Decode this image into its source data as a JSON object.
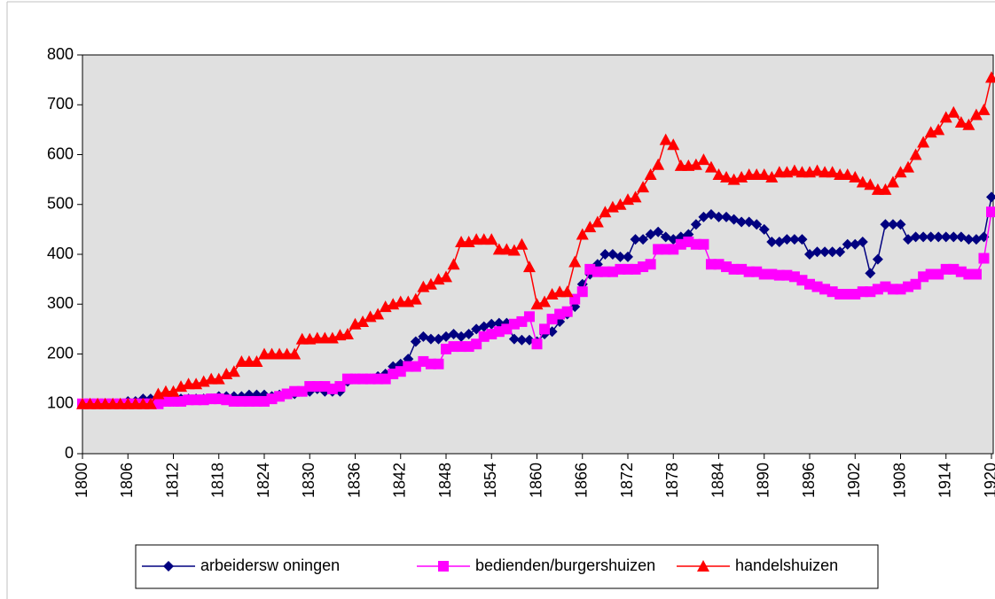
{
  "chart_data": {
    "type": "line",
    "x": [
      1800,
      1801,
      1802,
      1803,
      1804,
      1805,
      1806,
      1807,
      1808,
      1809,
      1810,
      1811,
      1812,
      1813,
      1814,
      1815,
      1816,
      1817,
      1818,
      1819,
      1820,
      1821,
      1822,
      1823,
      1824,
      1825,
      1826,
      1827,
      1828,
      1829,
      1830,
      1831,
      1832,
      1833,
      1834,
      1835,
      1836,
      1837,
      1838,
      1839,
      1840,
      1841,
      1842,
      1843,
      1844,
      1845,
      1846,
      1847,
      1848,
      1849,
      1850,
      1851,
      1852,
      1853,
      1854,
      1855,
      1856,
      1857,
      1858,
      1859,
      1860,
      1861,
      1862,
      1863,
      1864,
      1865,
      1866,
      1867,
      1868,
      1869,
      1870,
      1871,
      1872,
      1873,
      1874,
      1875,
      1876,
      1877,
      1878,
      1879,
      1880,
      1881,
      1882,
      1883,
      1884,
      1885,
      1886,
      1887,
      1888,
      1889,
      1890,
      1891,
      1892,
      1893,
      1894,
      1895,
      1896,
      1897,
      1898,
      1899,
      1900,
      1901,
      1902,
      1903,
      1904,
      1905,
      1906,
      1907,
      1908,
      1909,
      1910,
      1911,
      1912,
      1913,
      1914,
      1915,
      1916,
      1917,
      1918,
      1919,
      1920
    ],
    "xlim": [
      1800,
      1920
    ],
    "xticks": [
      1800,
      1806,
      1812,
      1818,
      1824,
      1830,
      1836,
      1842,
      1848,
      1854,
      1860,
      1866,
      1872,
      1878,
      1884,
      1890,
      1896,
      1902,
      1908,
      1914,
      1920
    ],
    "ylim": [
      0,
      800
    ],
    "yticks": [
      0,
      100,
      200,
      300,
      400,
      500,
      600,
      700,
      800
    ],
    "legend": "bottom",
    "series": [
      {
        "name": "arbeidersw oningen",
        "color": "#000080",
        "marker": "diamond",
        "values": [
          100,
          100,
          100,
          100,
          100,
          100,
          105,
          105,
          110,
          110,
          105,
          105,
          105,
          110,
          110,
          110,
          110,
          110,
          115,
          115,
          115,
          115,
          118,
          118,
          118,
          115,
          118,
          120,
          120,
          125,
          125,
          130,
          125,
          125,
          125,
          145,
          150,
          150,
          150,
          155,
          160,
          175,
          180,
          190,
          225,
          235,
          230,
          230,
          235,
          240,
          235,
          240,
          250,
          255,
          260,
          262,
          262,
          230,
          228,
          228,
          225,
          240,
          245,
          265,
          280,
          295,
          340,
          360,
          380,
          400,
          400,
          395,
          395,
          430,
          430,
          440,
          445,
          435,
          430,
          435,
          440,
          460,
          475,
          480,
          475,
          475,
          470,
          465,
          465,
          460,
          450,
          425,
          425,
          430,
          430,
          430,
          400,
          405,
          405,
          405,
          405,
          420,
          420,
          425,
          362,
          390,
          460,
          460,
          460,
          430,
          435,
          435,
          435,
          435,
          435,
          435,
          435,
          430,
          430,
          435,
          515
        ]
      },
      {
        "name": "bedienden/burgershuizen",
        "color": "#ff00ff",
        "marker": "square",
        "values": [
          100,
          100,
          100,
          100,
          100,
          100,
          100,
          100,
          100,
          100,
          100,
          105,
          105,
          105,
          108,
          108,
          108,
          110,
          110,
          108,
          105,
          105,
          105,
          105,
          105,
          110,
          115,
          120,
          125,
          125,
          135,
          135,
          135,
          130,
          135,
          150,
          150,
          150,
          150,
          150,
          150,
          160,
          165,
          175,
          175,
          185,
          180,
          180,
          210,
          215,
          215,
          215,
          220,
          235,
          240,
          245,
          250,
          260,
          265,
          275,
          220,
          250,
          270,
          280,
          285,
          310,
          325,
          370,
          365,
          365,
          365,
          370,
          370,
          370,
          375,
          380,
          410,
          410,
          410,
          420,
          425,
          420,
          420,
          380,
          380,
          375,
          370,
          370,
          365,
          365,
          360,
          360,
          358,
          358,
          355,
          348,
          340,
          335,
          330,
          325,
          320,
          320,
          320,
          325,
          325,
          330,
          335,
          330,
          330,
          335,
          340,
          355,
          360,
          360,
          370,
          370,
          365,
          360,
          360,
          392,
          485
        ]
      },
      {
        "name": "handelshuizen",
        "color": "#ff0000",
        "marker": "triangle",
        "values": [
          100,
          100,
          100,
          100,
          100,
          100,
          100,
          100,
          100,
          100,
          120,
          125,
          125,
          135,
          140,
          140,
          145,
          150,
          150,
          160,
          165,
          185,
          185,
          185,
          200,
          200,
          200,
          200,
          200,
          230,
          230,
          232,
          232,
          232,
          238,
          240,
          260,
          265,
          275,
          280,
          295,
          300,
          305,
          305,
          310,
          335,
          340,
          350,
          355,
          380,
          425,
          425,
          430,
          430,
          430,
          410,
          410,
          408,
          420,
          375,
          300,
          305,
          320,
          325,
          325,
          385,
          440,
          455,
          465,
          485,
          495,
          500,
          510,
          515,
          535,
          560,
          580,
          630,
          620,
          578,
          578,
          580,
          590,
          575,
          560,
          555,
          550,
          555,
          560,
          560,
          560,
          555,
          565,
          565,
          568,
          565,
          565,
          568,
          565,
          565,
          560,
          560,
          555,
          545,
          540,
          530,
          530,
          545,
          565,
          575,
          600,
          625,
          645,
          650,
          675,
          685,
          665,
          660,
          680,
          690,
          755
        ]
      }
    ]
  }
}
